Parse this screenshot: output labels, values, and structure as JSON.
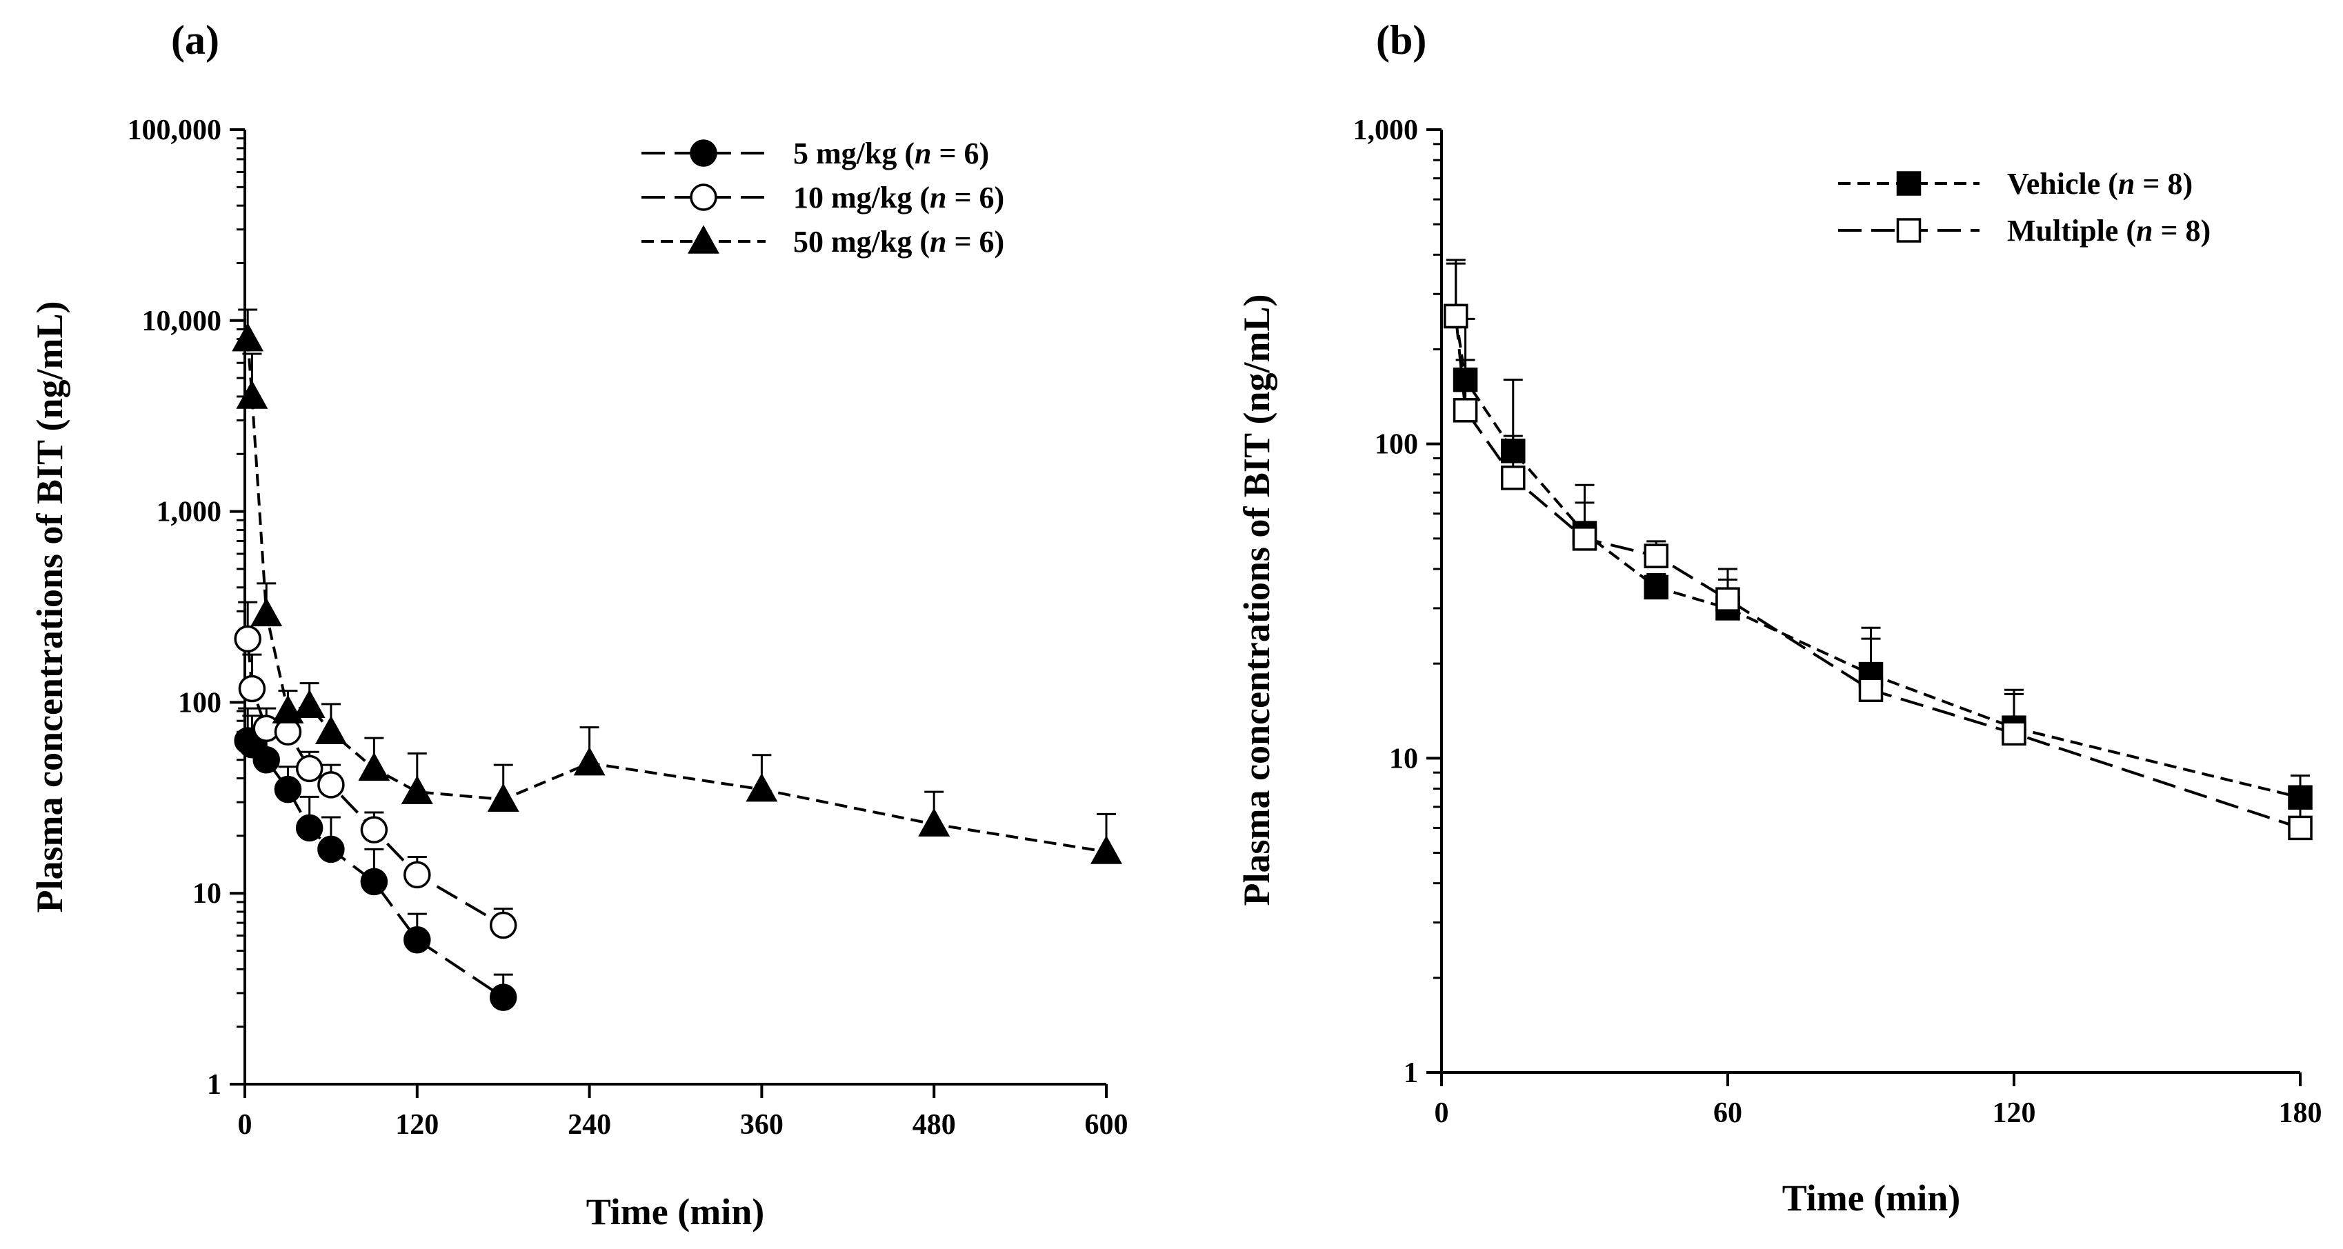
{
  "chart_data": [
    {
      "type": "line",
      "panel_label": "(a)",
      "xlabel": "Time (min)",
      "ylabel": "Plasma concentrations of BIT (ng/mL)",
      "yscale": "log",
      "xlim": [
        0,
        600
      ],
      "ylim": [
        1,
        100000
      ],
      "xticks": [
        0,
        120,
        240,
        360,
        480,
        600
      ],
      "xtick_labels": [
        "0",
        "120",
        "240",
        "360",
        "480",
        "600"
      ],
      "yticks": [
        1,
        10,
        100,
        1000,
        10000,
        100000
      ],
      "ytick_labels": [
        "1",
        "10",
        "100",
        "1,000",
        "10,000",
        "100,000"
      ],
      "legend_position": "top-right",
      "series": [
        {
          "name": "5 mg/kg",
          "n_label": "n",
          "n_value": " = 6)",
          "marker": "circle-filled",
          "dash": "34,14",
          "x": [
            2,
            5,
            15,
            30,
            45,
            60,
            90,
            120,
            180
          ],
          "y": [
            63,
            60,
            50,
            35,
            22,
            17,
            11.5,
            5.7,
            2.85
          ],
          "err": [
            30,
            25,
            18,
            11,
            10,
            8,
            5.5,
            2.1,
            0.9
          ]
        },
        {
          "name": "10 mg/kg",
          "n_label": "n",
          "n_value": " = 6)",
          "marker": "circle-open",
          "dash": "34,14",
          "x": [
            2,
            5,
            15,
            30,
            45,
            60,
            90,
            120,
            180
          ],
          "y": [
            215,
            118,
            73,
            70,
            45,
            37,
            21.5,
            12.5,
            6.8
          ],
          "err": [
            120,
            60,
            20,
            15,
            10,
            10,
            5,
            3,
            1.5
          ]
        },
        {
          "name": "50 mg/kg",
          "n_label": "n",
          "n_value": " = 6)",
          "marker": "triangle-filled",
          "dash": "18,10",
          "x": [
            2,
            5,
            15,
            30,
            45,
            60,
            90,
            120,
            180,
            240,
            360,
            480,
            600
          ],
          "y": [
            8000,
            4000,
            290,
            90,
            96,
            70,
            45,
            34,
            31,
            48,
            35,
            23,
            16.5
          ],
          "err": [
            3400,
            2700,
            130,
            25,
            30,
            28,
            20,
            20,
            16,
            26,
            18,
            11,
            9.5
          ]
        }
      ]
    },
    {
      "type": "line",
      "panel_label": "(b)",
      "xlabel": "Time (min)",
      "ylabel": "Plasma concentrations of BIT (ng/mL)",
      "yscale": "log",
      "xlim": [
        0,
        180
      ],
      "ylim": [
        1,
        1000
      ],
      "xticks": [
        0,
        60,
        120,
        180
      ],
      "xtick_labels": [
        "0",
        "60",
        "120",
        "180"
      ],
      "yticks": [
        1,
        10,
        100,
        1000
      ],
      "ytick_labels": [
        "1",
        "10",
        "100",
        "1,000"
      ],
      "legend_position": "top-right",
      "series": [
        {
          "name": "Vehicle",
          "n_label": "n",
          "n_value": " = 8)",
          "marker": "square-filled",
          "dash": "18,10",
          "x": [
            3,
            5,
            15,
            30,
            45,
            60,
            90,
            120,
            180
          ],
          "y": [
            255,
            160,
            95,
            52,
            35,
            30,
            18.5,
            12.5,
            7.5
          ],
          "err": [
            120,
            90,
            65,
            22,
            3.5,
            7,
            7.5,
            4,
            1.3
          ]
        },
        {
          "name": "Multiple",
          "n_label": "n",
          "n_value": " = 8)",
          "marker": "square-open",
          "dash": "34,14",
          "x": [
            3,
            5,
            15,
            30,
            45,
            60,
            90,
            120,
            180
          ],
          "y": [
            255,
            128,
            78,
            50,
            44,
            32,
            16.5,
            12,
            6
          ],
          "err": [
            130,
            57,
            28,
            15,
            5,
            8,
            7.5,
            4,
            1.7
          ]
        }
      ]
    }
  ]
}
